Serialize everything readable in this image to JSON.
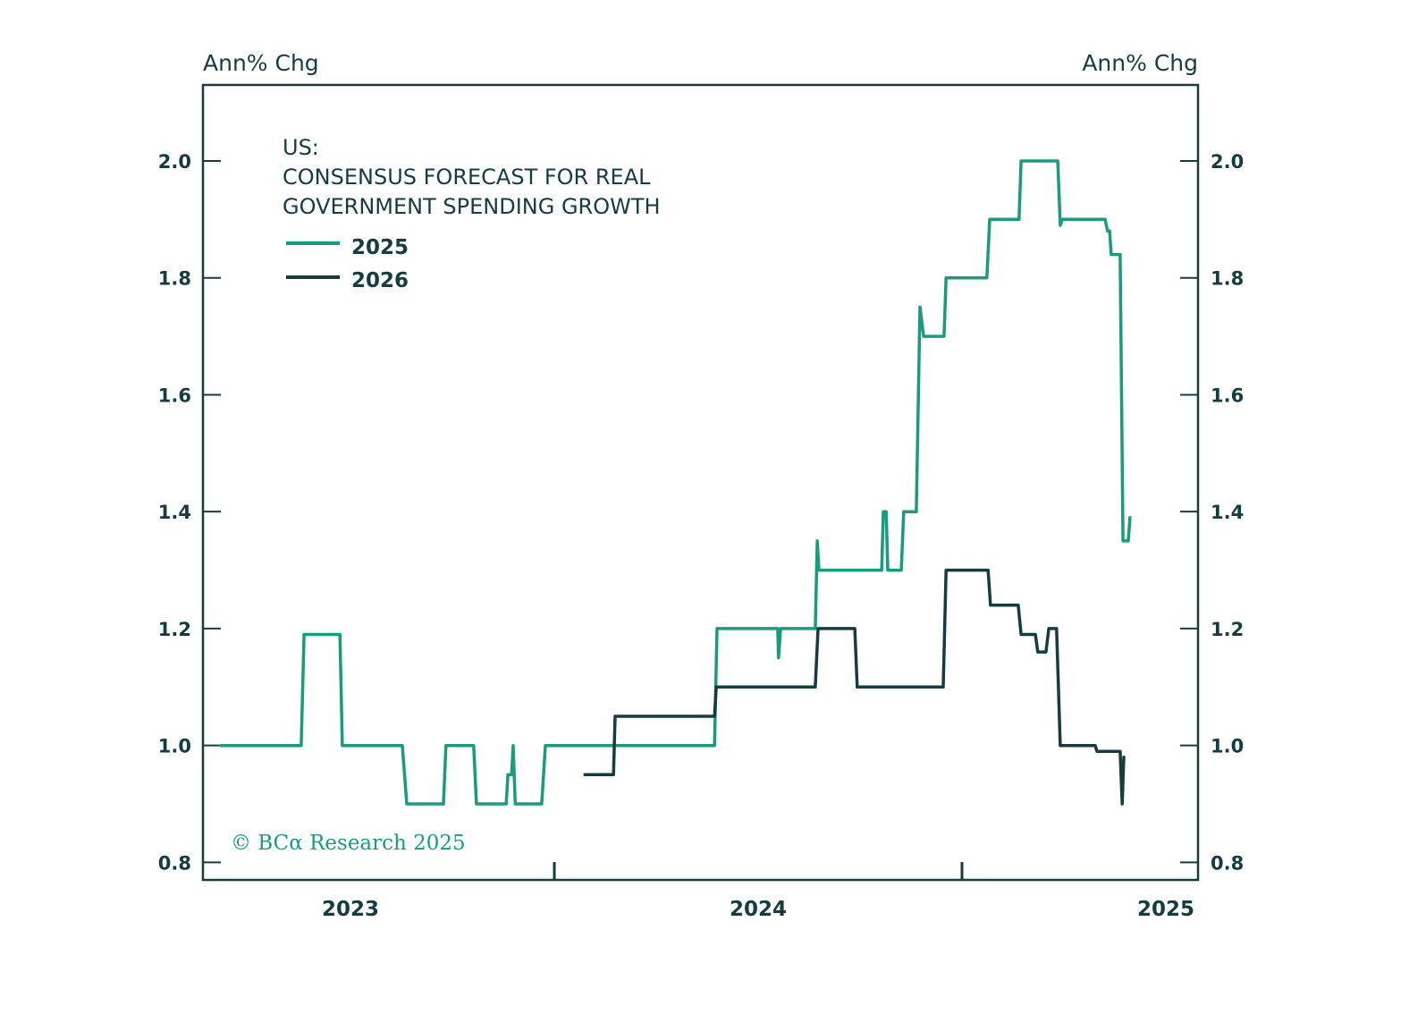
{
  "chart_data": {
    "type": "line",
    "title": "US:",
    "subtitle_lines": [
      "CONSENSUS FORECAST FOR REAL",
      "GOVERNMENT SPENDING GROWTH"
    ],
    "ylabel_left": "Ann% Chg",
    "ylabel_right": "Ann% Chg",
    "xlabel": "",
    "xlim": [
      2022.638,
      2025.079
    ],
    "ylim": [
      0.77,
      2.13
    ],
    "y_ticks": [
      0.8,
      1.0,
      1.2,
      1.4,
      1.6,
      1.8,
      2.0
    ],
    "y_tick_labels": [
      "0.8",
      "1.0",
      "1.2",
      "1.4",
      "1.6",
      "1.8",
      "2.0"
    ],
    "x_ticks": [
      2023,
      2024,
      2025
    ],
    "x_tick_labels": [
      "2023",
      "2024",
      "2025"
    ],
    "x_minor_ticks": [
      2023.5,
      2024.5
    ],
    "grid": false,
    "legend_position": "top-left",
    "annotation": "© BCα Research 2025",
    "series": [
      {
        "name": "2025",
        "color": "#1a9c7c",
        "x": [
          2022.682,
          2022.879,
          2022.886,
          2022.974,
          2022.98,
          2023.127,
          2023.138,
          2023.228,
          2023.234,
          2023.302,
          2023.309,
          2023.382,
          2023.386,
          2023.395,
          2023.399,
          2023.404,
          2023.469,
          2023.478,
          2023.893,
          2023.899,
          2024.048,
          2024.05,
          2024.055,
          2024.14,
          2024.145,
          2024.149,
          2024.303,
          2024.307,
          2024.314,
          2024.318,
          2024.351,
          2024.357,
          2024.388,
          2024.397,
          2024.406,
          2024.456,
          2024.461,
          2024.561,
          2024.568,
          2024.64,
          2024.645,
          2024.735,
          2024.741,
          2024.746,
          2024.851,
          2024.857,
          2024.862,
          2024.866,
          2024.888,
          2024.895,
          2024.908,
          2024.912
        ],
        "values": [
          1.0,
          1.0,
          1.19,
          1.19,
          1.0,
          1.0,
          0.9,
          0.9,
          1.0,
          1.0,
          0.9,
          0.9,
          0.95,
          0.95,
          1.0,
          0.9,
          0.9,
          1.0,
          1.0,
          1.2,
          1.2,
          1.15,
          1.2,
          1.2,
          1.35,
          1.3,
          1.3,
          1.4,
          1.4,
          1.3,
          1.3,
          1.4,
          1.4,
          1.75,
          1.7,
          1.7,
          1.8,
          1.8,
          1.9,
          1.9,
          2.0,
          2.0,
          1.89,
          1.9,
          1.9,
          1.88,
          1.88,
          1.84,
          1.84,
          1.35,
          1.35,
          1.39
        ]
      },
      {
        "name": "2026",
        "color": "#173c40",
        "x": [
          2023.575,
          2023.645,
          2023.649,
          2023.893,
          2023.897,
          2024.14,
          2024.147,
          2024.237,
          2024.243,
          2024.454,
          2024.461,
          2024.564,
          2024.57,
          2024.638,
          2024.645,
          2024.68,
          2024.686,
          2024.706,
          2024.713,
          2024.732,
          2024.741,
          2024.827,
          2024.831,
          2024.888,
          2024.893,
          2024.897
        ],
        "values": [
          0.95,
          0.95,
          1.05,
          1.05,
          1.1,
          1.1,
          1.2,
          1.2,
          1.1,
          1.1,
          1.3,
          1.3,
          1.24,
          1.24,
          1.19,
          1.19,
          1.16,
          1.16,
          1.2,
          1.2,
          1.0,
          1.0,
          0.99,
          0.99,
          0.9,
          0.98
        ]
      }
    ]
  }
}
